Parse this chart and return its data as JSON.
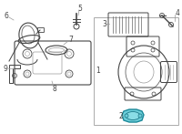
{
  "bg_color": "#ffffff",
  "highlight_color": "#6ecfda",
  "lc": "#999999",
  "dc": "#444444",
  "mc": "#666666",
  "label_color": "#222222",
  "fig_width": 2.0,
  "fig_height": 1.47,
  "dpi": 100
}
